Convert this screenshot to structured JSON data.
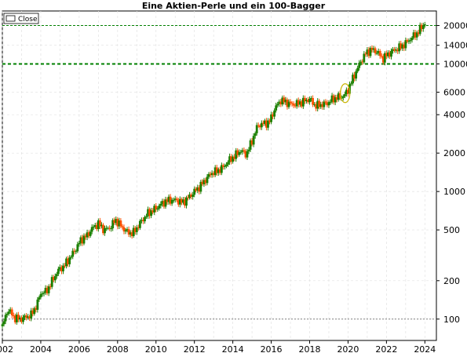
{
  "chart_data": {
    "type": "candlestick",
    "title": "Eine Aktien-Perle und ein 100-Bagger",
    "legend": {
      "label": "Close",
      "position": "top-left"
    },
    "y_scale": "log",
    "ylim": [
      68,
      26000
    ],
    "xlim": [
      2002.0,
      2024.6
    ],
    "x_ticks": [
      "2002",
      "2004",
      "2006",
      "2008",
      "2010",
      "2012",
      "2014",
      "2016",
      "2018",
      "2020",
      "2022",
      "2024"
    ],
    "y_ticks": [
      "100",
      "200",
      "500",
      "1000",
      "2000",
      "4000",
      "6000",
      "10000",
      "14000",
      "20000"
    ],
    "grid": true,
    "reference_lines": [
      {
        "value": 100,
        "color": "#808080",
        "style": "dotted"
      },
      {
        "value": 10000,
        "color": "#008000",
        "style": "dashed-bold"
      },
      {
        "value": 20000,
        "color": "#008000",
        "style": "dashed"
      }
    ],
    "highlight": {
      "x": 2019.85,
      "y": 5900,
      "color": "#c8b400"
    },
    "close_series": [
      [
        2002.0,
        88
      ],
      [
        2002.3,
        120
      ],
      [
        2002.6,
        103
      ],
      [
        2002.9,
        100
      ],
      [
        2003.2,
        103
      ],
      [
        2003.5,
        108
      ],
      [
        2003.8,
        130
      ],
      [
        2004.0,
        160
      ],
      [
        2004.3,
        165
      ],
      [
        2004.6,
        200
      ],
      [
        2004.9,
        240
      ],
      [
        2005.2,
        260
      ],
      [
        2005.5,
        300
      ],
      [
        2005.8,
        350
      ],
      [
        2006.1,
        420
      ],
      [
        2006.4,
        450
      ],
      [
        2006.7,
        520
      ],
      [
        2007.0,
        560
      ],
      [
        2007.3,
        500
      ],
      [
        2007.6,
        520
      ],
      [
        2007.9,
        600
      ],
      [
        2008.2,
        530
      ],
      [
        2008.5,
        480
      ],
      [
        2008.8,
        470
      ],
      [
        2009.0,
        520
      ],
      [
        2009.3,
        600
      ],
      [
        2009.6,
        680
      ],
      [
        2009.9,
        720
      ],
      [
        2010.2,
        780
      ],
      [
        2010.5,
        840
      ],
      [
        2010.8,
        860
      ],
      [
        2011.1,
        850
      ],
      [
        2011.4,
        820
      ],
      [
        2011.7,
        900
      ],
      [
        2012.0,
        1000
      ],
      [
        2012.3,
        1100
      ],
      [
        2012.6,
        1250
      ],
      [
        2012.9,
        1400
      ],
      [
        2013.2,
        1450
      ],
      [
        2013.5,
        1550
      ],
      [
        2013.8,
        1750
      ],
      [
        2014.1,
        1900
      ],
      [
        2014.4,
        2100
      ],
      [
        2014.7,
        1950
      ],
      [
        2015.0,
        2500
      ],
      [
        2015.3,
        3300
      ],
      [
        2015.6,
        3400
      ],
      [
        2015.9,
        3500
      ],
      [
        2016.2,
        4500
      ],
      [
        2016.5,
        5200
      ],
      [
        2016.8,
        5000
      ],
      [
        2017.1,
        4800
      ],
      [
        2017.4,
        4900
      ],
      [
        2017.7,
        5100
      ],
      [
        2018.0,
        5300
      ],
      [
        2018.3,
        4700
      ],
      [
        2018.6,
        4800
      ],
      [
        2018.9,
        4900
      ],
      [
        2019.2,
        5300
      ],
      [
        2019.5,
        5500
      ],
      [
        2019.8,
        5600
      ],
      [
        2020.0,
        6300
      ],
      [
        2020.3,
        8000
      ],
      [
        2020.6,
        10000
      ],
      [
        2020.9,
        12000
      ],
      [
        2021.2,
        13000
      ],
      [
        2021.5,
        12500
      ],
      [
        2021.8,
        11000
      ],
      [
        2022.1,
        12000
      ],
      [
        2022.4,
        12800
      ],
      [
        2022.7,
        13500
      ],
      [
        2023.0,
        14500
      ],
      [
        2023.3,
        16000
      ],
      [
        2023.6,
        17500
      ],
      [
        2023.9,
        20000
      ],
      [
        2024.0,
        21000
      ]
    ]
  }
}
